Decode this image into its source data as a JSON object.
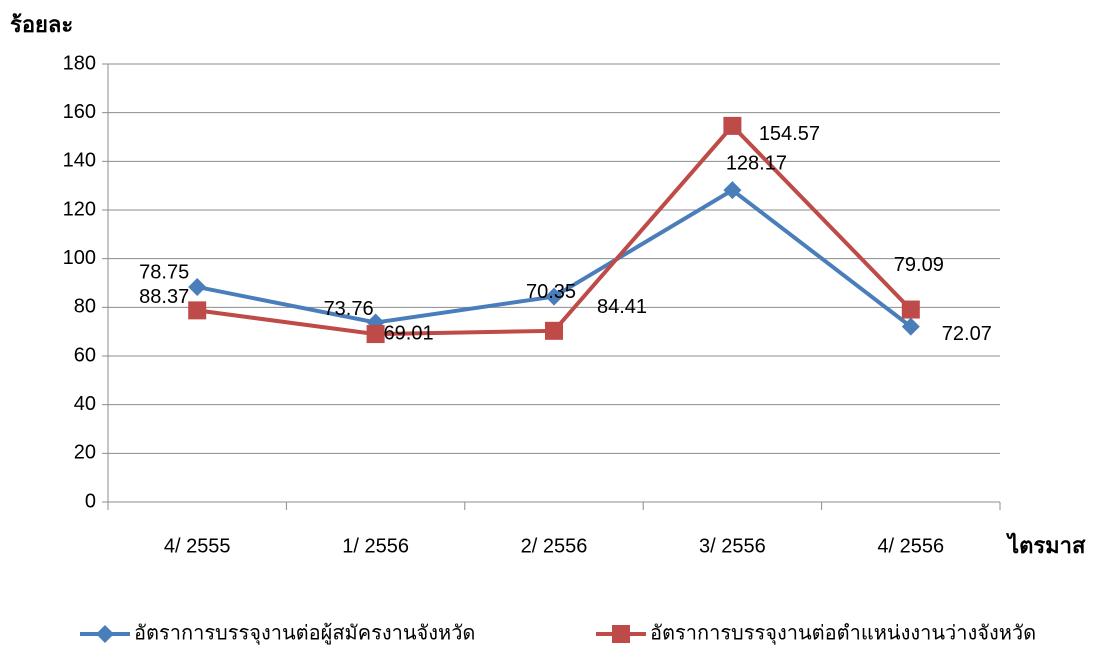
{
  "chart_data": {
    "type": "line",
    "y_axis_label": "ร้อยละ",
    "x_axis_label": "ไตรมาส",
    "categories": [
      "4/ 2555",
      "1/ 2556",
      "2/ 2556",
      "3/ 2556",
      "4/ 2556"
    ],
    "series": [
      {
        "name": "อัตราการบรรจุงานต่อผู้สมัครงานจังหวัด",
        "color": "#4a7ebb",
        "marker": "diamond",
        "values": [
          88.37,
          73.76,
          84.41,
          128.17,
          72.07
        ]
      },
      {
        "name": "อัตราการบรรจุงานต่อตำแหน่งงานว่างจังหวัด",
        "color": "#be4b48",
        "marker": "square",
        "values": [
          78.75,
          69.01,
          70.35,
          154.57,
          79.09
        ]
      }
    ],
    "ylim": [
      0,
      180
    ],
    "yticks": [
      0,
      20,
      40,
      60,
      80,
      100,
      120,
      140,
      160,
      180
    ],
    "grid": true,
    "legend": "bottom"
  }
}
